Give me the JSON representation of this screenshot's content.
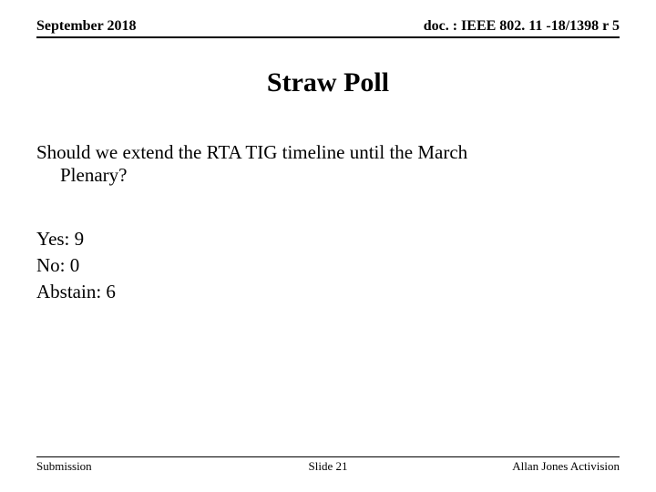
{
  "header": {
    "date": "September 2018",
    "docref": "doc. : IEEE 802. 11 -18/1398 r 5"
  },
  "title": "Straw Poll",
  "question": {
    "line1": "Should we extend the RTA TIG timeline until the March",
    "line2": "Plenary?"
  },
  "results": {
    "yes": "Yes: 9",
    "no": "No: 0",
    "abstain": "Abstain: 6"
  },
  "footer": {
    "left": "Submission",
    "center": "Slide 21",
    "right": "Allan Jones Activision"
  }
}
